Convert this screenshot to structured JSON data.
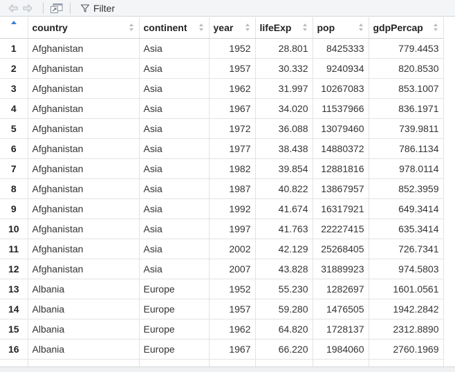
{
  "toolbar": {
    "back_icon": "arrow-left-icon",
    "forward_icon": "arrow-right-icon",
    "popout_icon": "popout-window-icon",
    "filter_icon": "funnel-icon",
    "filter_label": "Filter"
  },
  "table": {
    "columns": [
      "country",
      "continent",
      "year",
      "lifeExp",
      "pop",
      "gdpPercap"
    ],
    "rows": [
      {
        "index": "1",
        "country": "Afghanistan",
        "continent": "Asia",
        "year": "1952",
        "lifeExp": "28.801",
        "pop": "8425333",
        "gdpPercap": "779.4453"
      },
      {
        "index": "2",
        "country": "Afghanistan",
        "continent": "Asia",
        "year": "1957",
        "lifeExp": "30.332",
        "pop": "9240934",
        "gdpPercap": "820.8530"
      },
      {
        "index": "3",
        "country": "Afghanistan",
        "continent": "Asia",
        "year": "1962",
        "lifeExp": "31.997",
        "pop": "10267083",
        "gdpPercap": "853.1007"
      },
      {
        "index": "4",
        "country": "Afghanistan",
        "continent": "Asia",
        "year": "1967",
        "lifeExp": "34.020",
        "pop": "11537966",
        "gdpPercap": "836.1971"
      },
      {
        "index": "5",
        "country": "Afghanistan",
        "continent": "Asia",
        "year": "1972",
        "lifeExp": "36.088",
        "pop": "13079460",
        "gdpPercap": "739.9811"
      },
      {
        "index": "6",
        "country": "Afghanistan",
        "continent": "Asia",
        "year": "1977",
        "lifeExp": "38.438",
        "pop": "14880372",
        "gdpPercap": "786.1134"
      },
      {
        "index": "7",
        "country": "Afghanistan",
        "continent": "Asia",
        "year": "1982",
        "lifeExp": "39.854",
        "pop": "12881816",
        "gdpPercap": "978.0114"
      },
      {
        "index": "8",
        "country": "Afghanistan",
        "continent": "Asia",
        "year": "1987",
        "lifeExp": "40.822",
        "pop": "13867957",
        "gdpPercap": "852.3959"
      },
      {
        "index": "9",
        "country": "Afghanistan",
        "continent": "Asia",
        "year": "1992",
        "lifeExp": "41.674",
        "pop": "16317921",
        "gdpPercap": "649.3414"
      },
      {
        "index": "10",
        "country": "Afghanistan",
        "continent": "Asia",
        "year": "1997",
        "lifeExp": "41.763",
        "pop": "22227415",
        "gdpPercap": "635.3414"
      },
      {
        "index": "11",
        "country": "Afghanistan",
        "continent": "Asia",
        "year": "2002",
        "lifeExp": "42.129",
        "pop": "25268405",
        "gdpPercap": "726.7341"
      },
      {
        "index": "12",
        "country": "Afghanistan",
        "continent": "Asia",
        "year": "2007",
        "lifeExp": "43.828",
        "pop": "31889923",
        "gdpPercap": "974.5803"
      },
      {
        "index": "13",
        "country": "Albania",
        "continent": "Europe",
        "year": "1952",
        "lifeExp": "55.230",
        "pop": "1282697",
        "gdpPercap": "1601.0561"
      },
      {
        "index": "14",
        "country": "Albania",
        "continent": "Europe",
        "year": "1957",
        "lifeExp": "59.280",
        "pop": "1476505",
        "gdpPercap": "1942.2842"
      },
      {
        "index": "15",
        "country": "Albania",
        "continent": "Europe",
        "year": "1962",
        "lifeExp": "64.820",
        "pop": "1728137",
        "gdpPercap": "2312.8890"
      },
      {
        "index": "16",
        "country": "Albania",
        "continent": "Europe",
        "year": "1967",
        "lifeExp": "66.220",
        "pop": "1984060",
        "gdpPercap": "2760.1969"
      }
    ]
  },
  "colors": {
    "toolbar_bg": "#f3f5f7",
    "grid_line": "#e3e3e3",
    "sort_active": "#3b7fd4",
    "text": "#333333"
  }
}
